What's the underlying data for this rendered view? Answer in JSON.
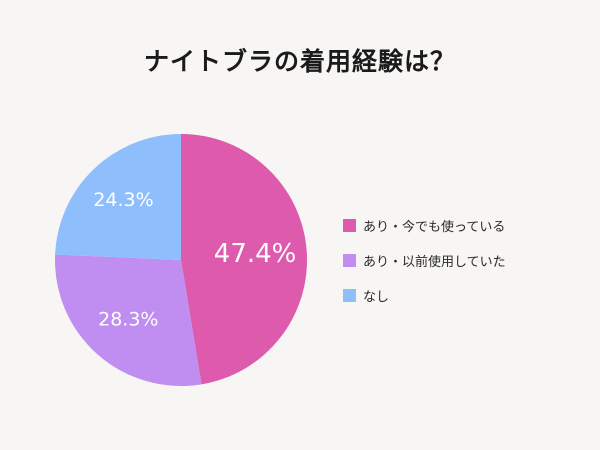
{
  "chart_data": {
    "type": "pie",
    "title": "ナイトブラの着用経験は？",
    "start_angle_deg": 0,
    "direction": "clockwise",
    "slices": [
      {
        "label": "あり・今でも使っている",
        "value": 47.4,
        "display": "47.4%",
        "color": "#dd5aad"
      },
      {
        "label": "あり・以前使用していた",
        "value": 28.3,
        "display": "28.3%",
        "color": "#bf8ef0"
      },
      {
        "label": "なし",
        "value": 24.3,
        "display": "24.3%",
        "color": "#8fbefc"
      }
    ],
    "legend_position": "right"
  }
}
